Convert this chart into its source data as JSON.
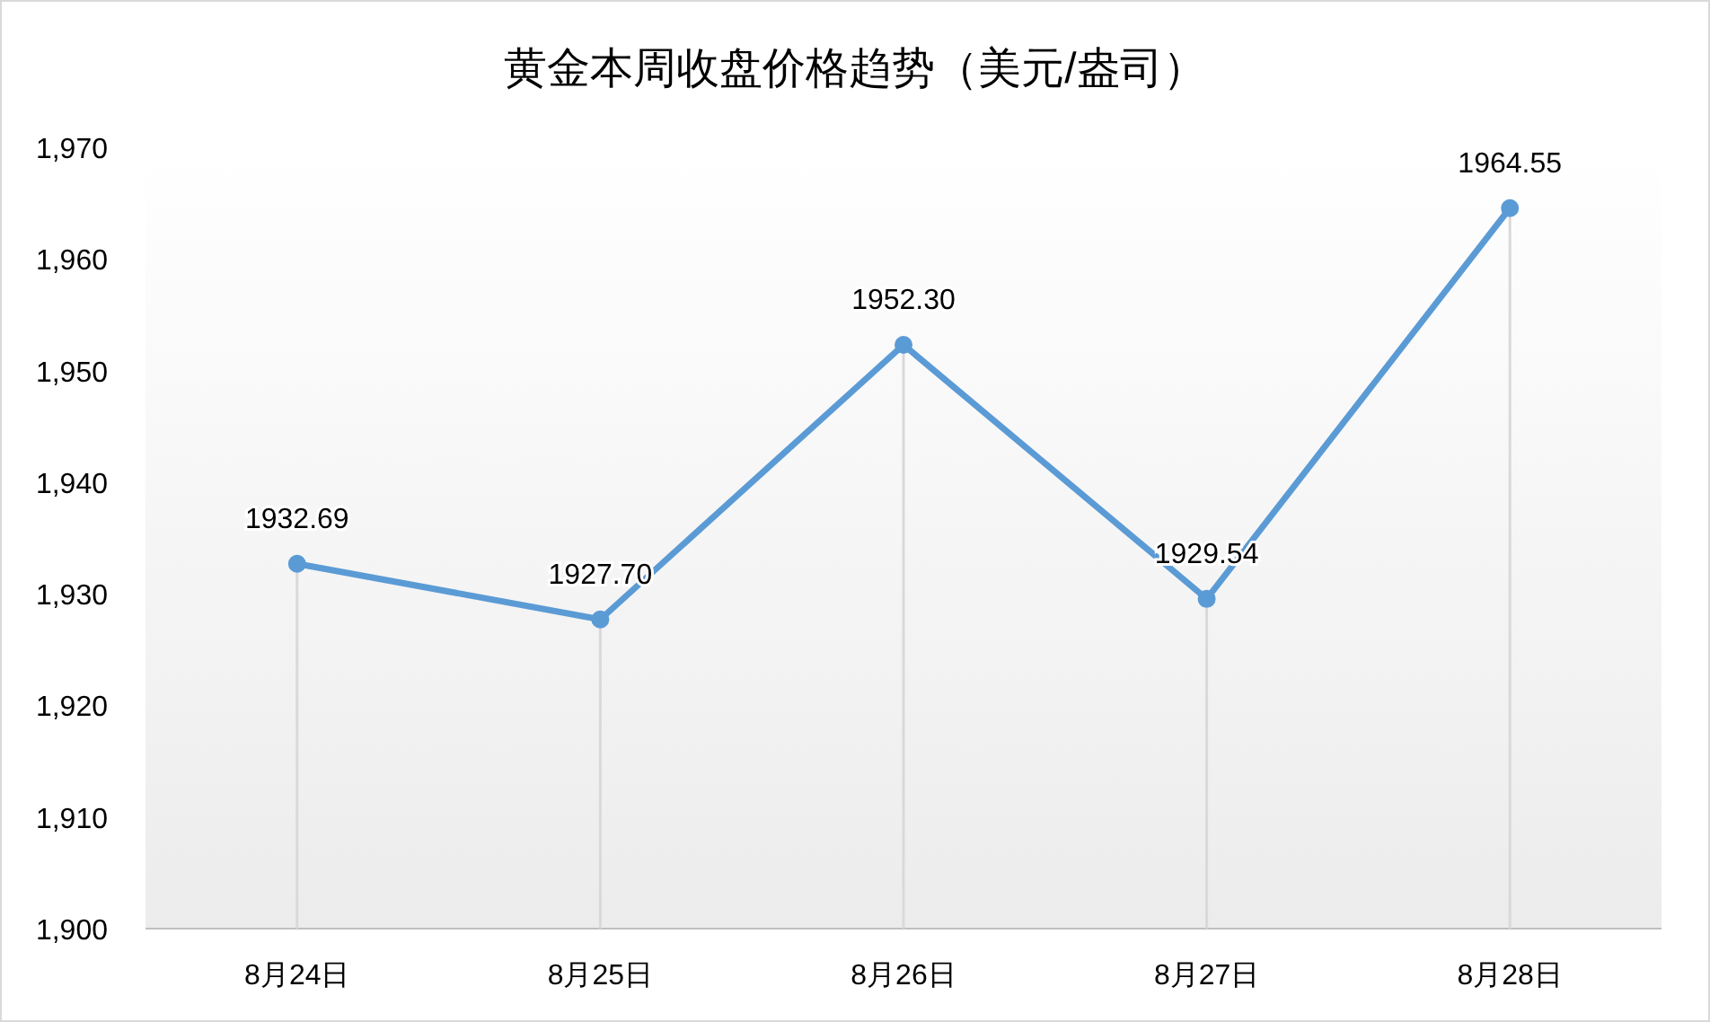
{
  "chart_data": {
    "type": "line",
    "title": "黄金本周收盘价格趋势（美元/盎司）",
    "categories": [
      "8月24日",
      "8月25日",
      "8月26日",
      "8月27日",
      "8月28日"
    ],
    "series": [
      {
        "color": "#5b9bd5",
        "values": [
          1932.69,
          1927.7,
          1952.3,
          1929.54,
          1964.55
        ],
        "value_labels": [
          "1932.69",
          "1927.70",
          "1952.30",
          "1929.54",
          "1964.55"
        ]
      }
    ],
    "ylim": [
      1900,
      1970
    ],
    "yticks": [
      {
        "value": 1900,
        "label": "1,900"
      },
      {
        "value": 1910,
        "label": "1,910"
      },
      {
        "value": 1920,
        "label": "1,920"
      },
      {
        "value": 1930,
        "label": "1,930"
      },
      {
        "value": 1940,
        "label": "1,940"
      },
      {
        "value": 1950,
        "label": "1,950"
      },
      {
        "value": 1960,
        "label": "1,960"
      },
      {
        "value": 1970,
        "label": "1,970"
      }
    ],
    "marker": "circle",
    "line_style": "solid",
    "grid": "x"
  }
}
